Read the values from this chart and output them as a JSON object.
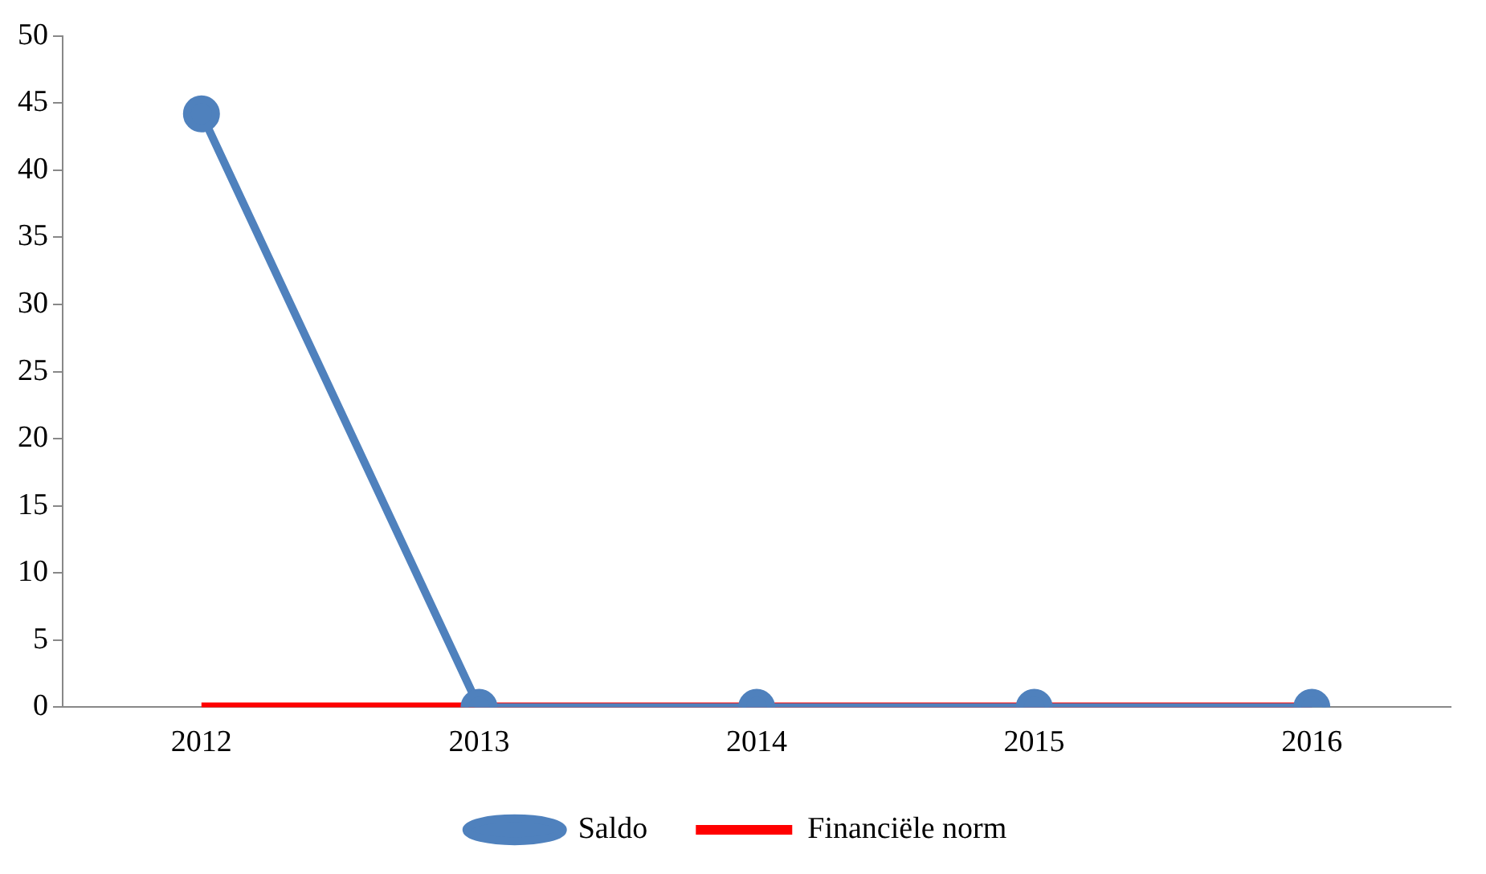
{
  "chart_data": {
    "type": "line",
    "categories": [
      "2012",
      "2013",
      "2014",
      "2015",
      "2016"
    ],
    "series": [
      {
        "name": "Saldo",
        "color": "#4f81bd",
        "values": [
          44.2,
          0,
          0,
          0,
          0
        ],
        "marker": "circle"
      },
      {
        "name": "Financiële norm",
        "color": "#ff0000",
        "values": [
          0,
          0,
          0,
          0,
          0
        ],
        "marker": "none"
      }
    ],
    "ylim": [
      0,
      50
    ],
    "yticks": [
      0,
      5,
      10,
      15,
      20,
      25,
      30,
      35,
      40,
      45,
      50
    ],
    "grid": false,
    "legend": "bottom"
  }
}
